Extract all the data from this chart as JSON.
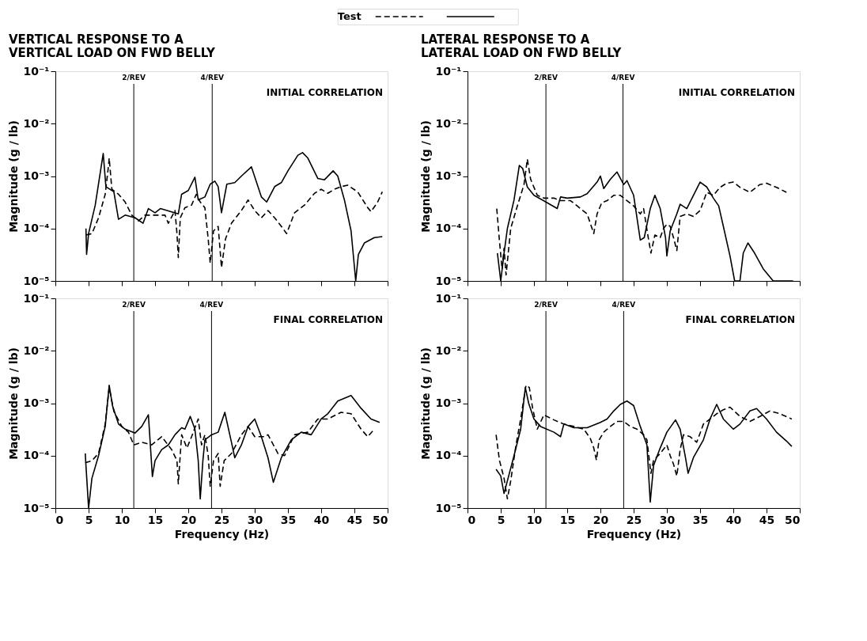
{
  "chart_data": [
    {
      "type": "line",
      "title": "VERTICAL RESPONSE TO A\nVERTICAL LOAD ON FWD BELLY",
      "ylabel": "Magnitude (g / lb)",
      "legend": "top",
      "log": "y",
      "grid": false,
      "tick_labels": "y",
      "xlim": [
        0,
        50
      ],
      "xticks": [
        0,
        5,
        10,
        15,
        20,
        25,
        30,
        35,
        40,
        45,
        50
      ],
      "ylim": [
        1e-05,
        0.1
      ],
      "yticks": [
        {
          "value": 1e-05,
          "label": "10⁻⁵"
        },
        {
          "value": 0.0001,
          "label": "10⁻⁴"
        },
        {
          "value": 0.001,
          "label": "10⁻³"
        },
        {
          "value": 0.01,
          "label": "10⁻²"
        },
        {
          "value": 0.1,
          "label": "10⁻¹"
        }
      ],
      "ref_lines": [
        {
          "axis": "x",
          "value": 11.8,
          "label": "2/REV",
          "color": "#000000"
        },
        {
          "axis": "x",
          "value": 23.6,
          "label": "4/REV",
          "color": "#000000"
        }
      ],
      "annotations": [
        "INITIAL CORRELATION"
      ],
      "series": [
        {
          "name": "Test",
          "color": "#000000",
          "line_style": "dashed",
          "x": [
            4.6,
            5.5,
            6.5,
            7.5,
            8,
            8.1,
            8.5,
            9.5,
            10.5,
            11.5,
            12.5,
            13.5,
            14.5,
            15.5,
            16.5,
            17,
            18,
            18.3,
            18.5,
            18.8,
            19.5,
            20.5,
            21.2,
            21.8,
            22.5,
            23,
            23.3,
            23.8,
            24.5,
            25,
            25.6,
            26.5,
            28,
            29,
            30,
            31,
            32,
            33,
            34,
            34.8,
            36,
            37.5,
            39,
            40,
            41,
            42,
            43,
            44,
            45.5,
            47,
            47.5,
            48.5,
            49.2
          ],
          "values": [
            7.5e-05,
            8e-05,
            0.00016,
            0.00045,
            0.0016,
            0.0022,
            0.00056,
            0.00045,
            0.00032,
            0.00018,
            0.00014,
            0.00018,
            0.00018,
            0.00018,
            0.00018,
            0.000126,
            0.00022,
            8e-05,
            2.8e-05,
            0.00016,
            0.00025,
            0.00028,
            0.00045,
            0.00032,
            0.00025,
            6.3e-05,
            2.2e-05,
            9e-05,
            0.00011,
            1.8e-05,
            6.3e-05,
            0.000126,
            0.00022,
            0.00035,
            0.00022,
            0.00016,
            0.00022,
            0.00016,
            0.00011,
            8e-05,
            0.0002,
            0.00028,
            0.00047,
            0.00056,
            0.00047,
            0.00056,
            0.00063,
            0.00067,
            0.0005,
            0.00025,
            0.00021,
            0.00032,
            0.0005
          ]
        },
        {
          "color": "#000000",
          "line_style": "solid",
          "x": [
            4.6,
            4.7,
            5,
            6,
            7.2,
            7.6,
            8.8,
            9.5,
            10.5,
            12,
            13.2,
            14,
            15,
            15.8,
            18.5,
            19,
            20,
            21,
            21.5,
            22.5,
            23.3,
            24,
            24.5,
            25,
            25.8,
            27,
            28,
            29.5,
            31,
            31.8,
            33,
            34,
            35,
            36.5,
            37.2,
            38,
            39.5,
            40.5,
            41.8,
            42.5,
            43.5,
            44.5,
            45.2,
            45.6,
            46.5,
            48,
            49.2
          ],
          "values": [
            0.0001,
            3.2e-05,
            8e-05,
            0.00028,
            0.0027,
            0.00063,
            0.0005,
            0.00015,
            0.00018,
            0.00016,
            0.000126,
            0.00024,
            0.0002,
            0.00024,
            0.00019,
            0.00045,
            0.00053,
            0.00095,
            0.00035,
            0.0004,
            0.0007,
            0.0008,
            0.00063,
            0.0002,
            0.0007,
            0.00075,
            0.001,
            0.0015,
            0.0004,
            0.00032,
            0.00063,
            0.00075,
            0.00126,
            0.0025,
            0.0028,
            0.0022,
            0.0009,
            0.00085,
            0.00126,
            0.001,
            0.00035,
            9e-05,
            1e-05,
            3.2e-05,
            5.3e-05,
            6.7e-05,
            7e-05
          ]
        }
      ]
    },
    {
      "type": "line",
      "title": "LATERAL RESPONSE TO A\nLATERAL LOAD ON FWD BELLY",
      "ylabel": "Magnitude (g / lb)",
      "log": "y",
      "grid": false,
      "tick_labels": "y",
      "xlim": [
        0,
        50
      ],
      "xticks": [
        0,
        5,
        10,
        15,
        20,
        25,
        30,
        35,
        40,
        45,
        50
      ],
      "ylim": [
        1e-05,
        0.1
      ],
      "yticks": [
        {
          "value": 1e-05,
          "label": "10⁻⁵"
        },
        {
          "value": 0.0001,
          "label": "10⁻⁴"
        },
        {
          "value": 0.001,
          "label": "10⁻³"
        },
        {
          "value": 0.01,
          "label": "10⁻²"
        },
        {
          "value": 0.1,
          "label": "10⁻¹"
        }
      ],
      "ref_lines": [
        {
          "axis": "x",
          "value": 11.8,
          "label": "2/REV",
          "color": "#000000"
        },
        {
          "axis": "x",
          "value": 23.4,
          "label": "4/REV",
          "color": "#000000"
        }
      ],
      "annotations": [
        "INITIAL CORRELATION"
      ],
      "series": [
        {
          "color": "#000000",
          "line_style": "dashed",
          "x": [
            4.4,
            4.8,
            5.2,
            5.5,
            5.8,
            6.5,
            7.5,
            8.5,
            9,
            9.5,
            10.5,
            11.5,
            13,
            14,
            15.5,
            16.5,
            18,
            19,
            19.5,
            20.2,
            21,
            22,
            23,
            24,
            25,
            26,
            26.5,
            27.2,
            27.6,
            28.2,
            29,
            29.5,
            30,
            30.5,
            31,
            31.5,
            32,
            33,
            34,
            35,
            36,
            37,
            38,
            39,
            40,
            41,
            42.5,
            44,
            45,
            46.5,
            48
          ],
          "values": [
            0.00024,
            5.9e-05,
            1.7e-05,
            4.2e-05,
            1.3e-05,
            0.0001,
            0.00027,
            0.00069,
            0.0021,
            0.00087,
            0.00043,
            0.00038,
            0.00038,
            0.00034,
            0.00034,
            0.00027,
            0.00019,
            8e-05,
            0.00019,
            0.00031,
            0.00034,
            0.00043,
            0.00043,
            0.00034,
            0.00027,
            0.00019,
            0.00024,
            6.7e-05,
            3.4e-05,
            7.5e-05,
            6.7e-05,
            0.0001,
            0.00012,
            0.00011,
            6.7e-05,
            3.8e-05,
            0.00017,
            0.00019,
            0.00017,
            0.00022,
            0.00049,
            0.00043,
            0.00061,
            0.00073,
            0.00077,
            0.00061,
            0.00049,
            0.00069,
            0.00073,
            0.00061,
            0.00049
          ]
        },
        {
          "color": "#000000",
          "line_style": "solid",
          "x": [
            4.5,
            5,
            5.5,
            6,
            7,
            7.8,
            8.3,
            9,
            10,
            12,
            13.5,
            14,
            15,
            17,
            18,
            19.5,
            20,
            20.5,
            21.5,
            22.5,
            23.5,
            24,
            25,
            26,
            26.6,
            27.5,
            28.2,
            29,
            29.8,
            30,
            30.5,
            31.5,
            32,
            33,
            34,
            35,
            36,
            37,
            37.8,
            38.5,
            39.5,
            40.2,
            41,
            41.5,
            42.2,
            43.2,
            44.5,
            46,
            49
          ],
          "values": [
            3.4e-05,
            1e-05,
            3.4e-05,
            0.0001,
            0.00035,
            0.0016,
            0.0014,
            0.00062,
            0.00043,
            0.00031,
            0.00024,
            0.0004,
            0.00038,
            0.0004,
            0.00046,
            0.00077,
            0.001,
            0.00058,
            0.00087,
            0.0012,
            0.00069,
            0.00082,
            0.00043,
            6e-05,
            6.7e-05,
            0.00024,
            0.00043,
            0.00024,
            6.7e-05,
            3e-05,
            9e-05,
            0.00019,
            0.00029,
            0.00024,
            0.00043,
            0.00077,
            0.00062,
            0.00038,
            0.00027,
            0.00011,
            3e-05,
            1e-05,
            1e-05,
            3.4e-05,
            5.3e-05,
            3.4e-05,
            1.7e-05,
            1e-05,
            1e-05
          ]
        }
      ]
    },
    {
      "type": "line",
      "ylabel": "Magnitude (g / lb)",
      "xlabel": "Frequency (Hz)",
      "log": "y",
      "grid": false,
      "xlim": [
        0,
        50
      ],
      "xticks": [
        0,
        5,
        10,
        15,
        20,
        25,
        30,
        35,
        40,
        45,
        50
      ],
      "ylim": [
        1e-05,
        0.1
      ],
      "yticks": [
        {
          "value": 1e-05,
          "label": "10⁻⁵"
        },
        {
          "value": 0.0001,
          "label": "10⁻⁴"
        },
        {
          "value": 0.001,
          "label": "10⁻³"
        },
        {
          "value": 0.01,
          "label": "10⁻²"
        },
        {
          "value": 0.1,
          "label": "10⁻¹"
        }
      ],
      "ref_lines": [
        {
          "axis": "x",
          "value": 11.8,
          "label": "2/REV",
          "color": "#000000"
        },
        {
          "axis": "x",
          "value": 23.5,
          "label": "4/REV",
          "color": "#000000"
        }
      ],
      "annotations": [
        "FINAL CORRELATION"
      ],
      "series": [
        {
          "color": "#000000",
          "line_style": "dashed",
          "x": [
            4.5,
            5.5,
            6.5,
            7.5,
            8.1,
            8.8,
            10,
            11,
            11.8,
            13,
            14.5,
            16,
            17.5,
            18.3,
            18.5,
            19,
            19.8,
            20.5,
            21.5,
            22,
            22.5,
            23,
            23.3,
            23.8,
            24.5,
            24.8,
            25.4,
            26.5,
            28,
            29,
            30,
            31.5,
            32,
            33.5,
            34.5,
            36,
            38,
            39.5,
            41,
            43,
            44.5,
            46,
            47,
            48
          ],
          "values": [
            7.3e-05,
            8e-05,
            0.00011,
            0.0004,
            0.002,
            0.0007,
            0.00036,
            0.00028,
            0.00016,
            0.00018,
            0.00016,
            0.00023,
            0.00013,
            8e-05,
            2.9e-05,
            0.00025,
            0.00014,
            0.00023,
            0.0005,
            0.00016,
            0.00025,
            0.0001,
            2.6e-05,
            8e-05,
            0.00011,
            2.6e-05,
            8e-05,
            0.00011,
            0.00025,
            0.00036,
            0.00023,
            0.00023,
            0.00025,
            0.00011,
            0.0001,
            0.00025,
            0.00028,
            0.0005,
            0.0005,
            0.00067,
            0.00063,
            0.00032,
            0.00023,
            0.00032
          ]
        },
        {
          "color": "#000000",
          "line_style": "solid",
          "x": [
            4.5,
            4.6,
            5,
            5.5,
            6.5,
            7.5,
            8.1,
            8.6,
            9.5,
            10.5,
            12,
            13,
            14,
            14.6,
            15,
            16,
            17,
            18,
            19,
            19.5,
            20.3,
            21,
            21.5,
            21.8,
            22.2,
            22.5,
            23.5,
            24.5,
            25.5,
            26.5,
            27,
            28,
            29,
            30,
            31,
            32,
            32.8,
            34,
            35.5,
            37,
            38.5,
            40,
            41,
            42.5,
            44.5,
            46,
            47.5,
            48.8
          ],
          "values": [
            0.00011,
            6.5e-05,
            1e-05,
            3.7e-05,
            0.0001,
            0.00036,
            0.0022,
            0.00089,
            0.0004,
            0.00032,
            0.00027,
            0.00036,
            0.0006,
            4e-05,
            8e-05,
            0.00013,
            0.00016,
            0.00025,
            0.00034,
            0.00032,
            0.00056,
            0.00032,
            8e-05,
            1.5e-05,
            8e-05,
            0.0002,
            0.00025,
            0.00028,
            0.00067,
            0.00018,
            9.1e-05,
            0.00016,
            0.00036,
            0.0005,
            0.00023,
            9.1e-05,
            3.1e-05,
            9.1e-05,
            0.0002,
            0.00028,
            0.00025,
            0.0005,
            0.00063,
            0.0011,
            0.0014,
            0.0008,
            0.0005,
            0.00043
          ]
        }
      ]
    },
    {
      "type": "line",
      "ylabel": "Magnitude (g / lb)",
      "xlabel": "Frequency (Hz)",
      "log": "y",
      "grid": false,
      "xlim": [
        0,
        50
      ],
      "xticks": [
        0,
        5,
        10,
        15,
        20,
        25,
        30,
        35,
        40,
        45,
        50
      ],
      "ylim": [
        1e-05,
        0.1
      ],
      "yticks": [
        {
          "value": 1e-05,
          "label": "10⁻⁵"
        },
        {
          "value": 0.0001,
          "label": "10⁻⁴"
        },
        {
          "value": 0.001,
          "label": "10⁻³"
        },
        {
          "value": 0.01,
          "label": "10⁻²"
        },
        {
          "value": 0.1,
          "label": "10⁻¹"
        }
      ],
      "ref_lines": [
        {
          "axis": "x",
          "value": 11.8,
          "label": "2/REV",
          "color": "#000000"
        },
        {
          "axis": "x",
          "value": 23.5,
          "label": "4/REV",
          "color": "#000000"
        }
      ],
      "annotations": [
        "FINAL CORRELATION"
      ],
      "series": [
        {
          "color": "#000000",
          "line_style": "dashed",
          "x": [
            4.3,
            4.8,
            5.5,
            6,
            6.5,
            7.3,
            8,
            8.8,
            9.3,
            9.8,
            10.5,
            11.5,
            13,
            14.5,
            16,
            17.5,
            18.5,
            19,
            19.4,
            19.8,
            20.5,
            21.5,
            22.5,
            23.5,
            24.5,
            25.5,
            26.5,
            27,
            27.6,
            28,
            29,
            30,
            30.5,
            31,
            31.5,
            32,
            32.5,
            33.5,
            34.5,
            35.5,
            36.5,
            37.5,
            38.5,
            39.5,
            41,
            42.5,
            44,
            45.5,
            47,
            48.8
          ],
          "values": [
            0.00025,
            8.2e-05,
            3.7e-05,
            1.5e-05,
            3.3e-05,
            0.00016,
            0.0005,
            0.0022,
            0.002,
            0.0008,
            0.00032,
            0.0006,
            0.00048,
            0.0004,
            0.00036,
            0.00032,
            0.00021,
            0.00014,
            8.2e-05,
            0.0002,
            0.00028,
            0.00036,
            0.00045,
            0.00045,
            0.00036,
            0.00032,
            0.00025,
            0.0002,
            4.6e-05,
            8.2e-05,
            0.00011,
            0.00016,
            0.0001,
            6.9e-05,
            4.1e-05,
            0.00013,
            0.00025,
            0.00023,
            0.00018,
            0.0004,
            0.0005,
            0.00063,
            0.00075,
            0.00084,
            0.00056,
            0.00045,
            0.00056,
            0.00071,
            0.00063,
            0.0005
          ]
        },
        {
          "color": "#000000",
          "line_style": "solid",
          "x": [
            4.3,
            5,
            5.5,
            6,
            7,
            8,
            8.7,
            9.2,
            10,
            11,
            13,
            14,
            14.5,
            16,
            18,
            20,
            21,
            22,
            23,
            24,
            25,
            26,
            27,
            27.5,
            28,
            29,
            30,
            31.3,
            32,
            32.8,
            33.2,
            34,
            35.5,
            36.5,
            37.5,
            38.5,
            40,
            41,
            42.5,
            43.5,
            45,
            46.5,
            48,
            48.8
          ],
          "values": [
            5.5e-05,
            4.1e-05,
            1.9e-05,
            3.3e-05,
            0.0001,
            0.00032,
            0.002,
            0.001,
            0.0005,
            0.00036,
            0.00028,
            0.00023,
            0.0004,
            0.00034,
            0.00034,
            0.00043,
            0.0005,
            0.00071,
            0.00095,
            0.0011,
            0.0009,
            0.00036,
            0.00016,
            1.3e-05,
            6.5e-05,
            0.00014,
            0.00028,
            0.00048,
            0.00032,
            9.2e-05,
            4.6e-05,
            9.2e-05,
            0.0002,
            0.0005,
            0.00095,
            0.0005,
            0.00032,
            0.0004,
            0.00071,
            0.00079,
            0.0005,
            0.00028,
            0.00019,
            0.00015
          ]
        }
      ]
    }
  ]
}
